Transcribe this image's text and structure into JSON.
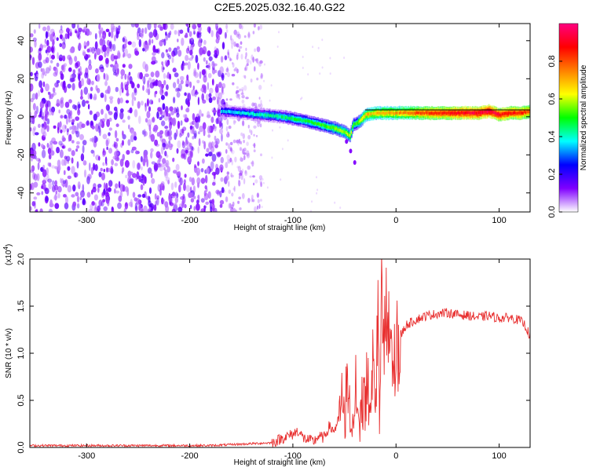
{
  "figure": {
    "title": "C2E5.2025.032.16.40.G22"
  },
  "chart_data": [
    {
      "type": "heatmap",
      "xlabel": "Height of straight line (km)",
      "ylabel": "Frequency (Hz)",
      "xlim": [
        -355,
        130
      ],
      "ylim": [
        -50,
        49
      ],
      "x_ticks": [
        -300,
        -200,
        -100,
        0,
        100
      ],
      "y_ticks": [
        -40,
        -20,
        0,
        20,
        40
      ],
      "x_tick_labels": [
        "-300",
        "-200",
        "-100",
        "0",
        "100"
      ],
      "y_tick_labels": [
        "-40",
        "-20",
        "0",
        "20",
        "40"
      ],
      "noise_region_x": [
        -355,
        -165
      ],
      "sparse_noise_x": [
        -165,
        -130
      ],
      "ridge": {
        "x": [
          -170,
          -150,
          -130,
          -110,
          -90,
          -75,
          -60,
          -50,
          -45,
          -42,
          -40,
          -35,
          -30,
          -20,
          0,
          20,
          40,
          60,
          80,
          90,
          100,
          110,
          120,
          130
        ],
        "y": [
          3,
          2,
          1,
          0,
          -2,
          -4,
          -6,
          -8,
          -10,
          -4,
          -4,
          -2,
          1,
          2,
          2,
          2,
          2,
          2,
          2,
          3,
          1,
          2,
          2,
          3
        ],
        "amplitude": [
          0.35,
          0.38,
          0.42,
          0.45,
          0.48,
          0.5,
          0.55,
          0.58,
          0.6,
          0.55,
          0.5,
          0.62,
          0.68,
          0.7,
          0.72,
          0.8,
          0.85,
          0.9,
          0.92,
          0.95,
          0.9,
          0.88,
          0.86,
          0.8
        ]
      },
      "tail": {
        "x": [
          -48,
          -44,
          -40
        ],
        "y": [
          -13,
          -18,
          -24
        ]
      },
      "colorbar": {
        "label": "Normalized spectral amplitude",
        "range": [
          0,
          1
        ],
        "ticks": [
          0.0,
          0.2,
          0.4,
          0.6,
          0.8
        ],
        "tick_labels": [
          "0.0",
          "0.2",
          "0.4",
          "0.6",
          "0.8"
        ],
        "colors": [
          "#ffffff",
          "#8000ff",
          "#0000ff",
          "#00ffff",
          "#00ff00",
          "#ffff00",
          "#ff8000",
          "#ff0000",
          "#ff0080"
        ]
      }
    },
    {
      "type": "line",
      "xlabel": "Height of straight line (km)",
      "ylabel": "SNR (10 * v/v)",
      "scale_base": "10",
      "scale_exp": "4",
      "xlim": [
        -355,
        130
      ],
      "ylim": [
        0,
        2.0
      ],
      "x_ticks": [
        -300,
        -200,
        -100,
        0,
        100
      ],
      "y_ticks": [
        0.0,
        0.5,
        1.0,
        1.5,
        2.0
      ],
      "x_tick_labels": [
        "-300",
        "-200",
        "-100",
        "0",
        "100"
      ],
      "y_tick_labels": [
        "0.0",
        "0.5",
        "1.0",
        "1.5",
        "2.0"
      ],
      "color": "#e83030",
      "series": [
        {
          "x": [
            -355,
            -330,
            -300,
            -270,
            -240,
            -210,
            -180,
            -160,
            -140,
            -120,
            -110,
            -100,
            -95,
            -90,
            -85,
            -80,
            -75,
            -70,
            -65,
            -60,
            -55,
            -52,
            -50,
            -48,
            -45,
            -42,
            -40,
            -38,
            -35,
            -32,
            -30,
            -28,
            -25,
            -22,
            -20,
            -18,
            -16,
            -14,
            -12,
            -10,
            -8,
            -5,
            0,
            5,
            10,
            20,
            30,
            40,
            50,
            60,
            70,
            80,
            90,
            100,
            110,
            120,
            125,
            130
          ],
          "y": [
            0.02,
            0.02,
            0.02,
            0.02,
            0.02,
            0.02,
            0.02,
            0.03,
            0.04,
            0.05,
            0.1,
            0.14,
            0.18,
            0.1,
            0.08,
            0.06,
            0.12,
            0.1,
            0.22,
            0.18,
            0.3,
            0.55,
            0.25,
            0.65,
            0.45,
            0.35,
            0.55,
            0.7,
            0.3,
            0.85,
            0.55,
            0.9,
            0.35,
            1.4,
            0.6,
            1.55,
            0.4,
            2.0,
            0.9,
            1.4,
            1.1,
            1.15,
            1.05,
            1.2,
            1.3,
            1.36,
            1.4,
            1.42,
            1.43,
            1.41,
            1.4,
            1.38,
            1.4,
            1.37,
            1.38,
            1.35,
            1.3,
            1.18
          ]
        }
      ]
    }
  ]
}
